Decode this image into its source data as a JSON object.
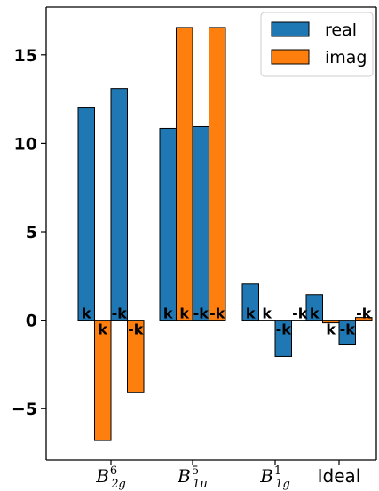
{
  "chart_data": {
    "type": "bar",
    "categories": [
      {
        "base": "B",
        "sup": "6",
        "sub": "2g"
      },
      {
        "base": "B",
        "sup": "5",
        "sub": "1u"
      },
      {
        "base": "B",
        "sup": "1",
        "sub": "1g"
      },
      {
        "base": "Ideal",
        "sup": "",
        "sub": ""
      }
    ],
    "bar_groups": [
      {
        "category": 0,
        "label": "k",
        "real": 12.0,
        "imag": -6.8
      },
      {
        "category": 0,
        "label": "-k",
        "real": 13.1,
        "imag": -4.1
      },
      {
        "category": 1,
        "label": "k",
        "real": 10.85,
        "imag": 16.55
      },
      {
        "category": 1,
        "label": "-k",
        "real": 10.95,
        "imag": 16.55
      },
      {
        "category": 2,
        "label": "k",
        "real": 2.05,
        "imag": 0.0
      },
      {
        "category": 2,
        "label": "-k",
        "real": -2.05,
        "imag": 0.0
      },
      {
        "category": 3,
        "label": "k",
        "real": 1.45,
        "imag": -0.15
      },
      {
        "category": 3,
        "label": "-k",
        "real": -1.4,
        "imag": 0.15
      }
    ],
    "series": [
      {
        "name": "real",
        "color": "#1f77b4"
      },
      {
        "name": "imag",
        "color": "#ff7f0e"
      }
    ],
    "yticks": [
      "−5",
      "0",
      "5",
      "10",
      "15"
    ],
    "ytick_values": [
      -5,
      0,
      5,
      10,
      15
    ],
    "ylim": [
      -7.9,
      17.7
    ],
    "legend_position": "top-right",
    "grid": false
  }
}
